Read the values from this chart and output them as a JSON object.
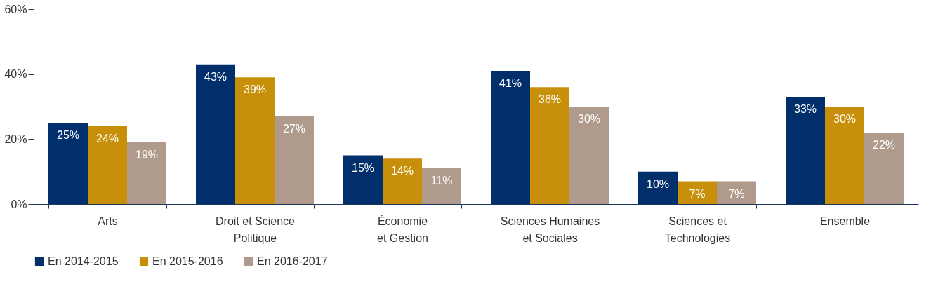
{
  "chart_data": {
    "type": "bar",
    "categories": [
      "Arts",
      "Droit et Science\nPolitique",
      "Économie\net Gestion",
      "Sciences Humaines\net Sociales",
      "Sciences et\nTechnologies",
      "Ensemble"
    ],
    "series": [
      {
        "name": "En 2014-2015",
        "color": "#002f6c",
        "values": [
          25,
          43,
          15,
          41,
          10,
          33
        ],
        "value_labels": [
          "25%",
          "43%",
          "15%",
          "41%",
          "10%",
          "33%"
        ]
      },
      {
        "name": "En 2015-2016",
        "color": "#c8900a",
        "values": [
          24,
          39,
          14,
          36,
          7,
          30
        ],
        "value_labels": [
          "24%",
          "39%",
          "14%",
          "36%",
          "7%",
          "30%"
        ]
      },
      {
        "name": "En 2016-2017",
        "color": "#b09a8b",
        "values": [
          19,
          27,
          11,
          30,
          7,
          22
        ],
        "value_labels": [
          "19%",
          "27%",
          "11%",
          "30%",
          "7%",
          "22%"
        ]
      }
    ],
    "ylim": [
      0,
      60
    ],
    "yticks": [
      {
        "value": 0,
        "label": "0%"
      },
      {
        "value": 20,
        "label": "20%"
      },
      {
        "value": 40,
        "label": "40%"
      },
      {
        "value": 60,
        "label": "60%"
      }
    ],
    "grid": false,
    "legend": "bottom"
  }
}
